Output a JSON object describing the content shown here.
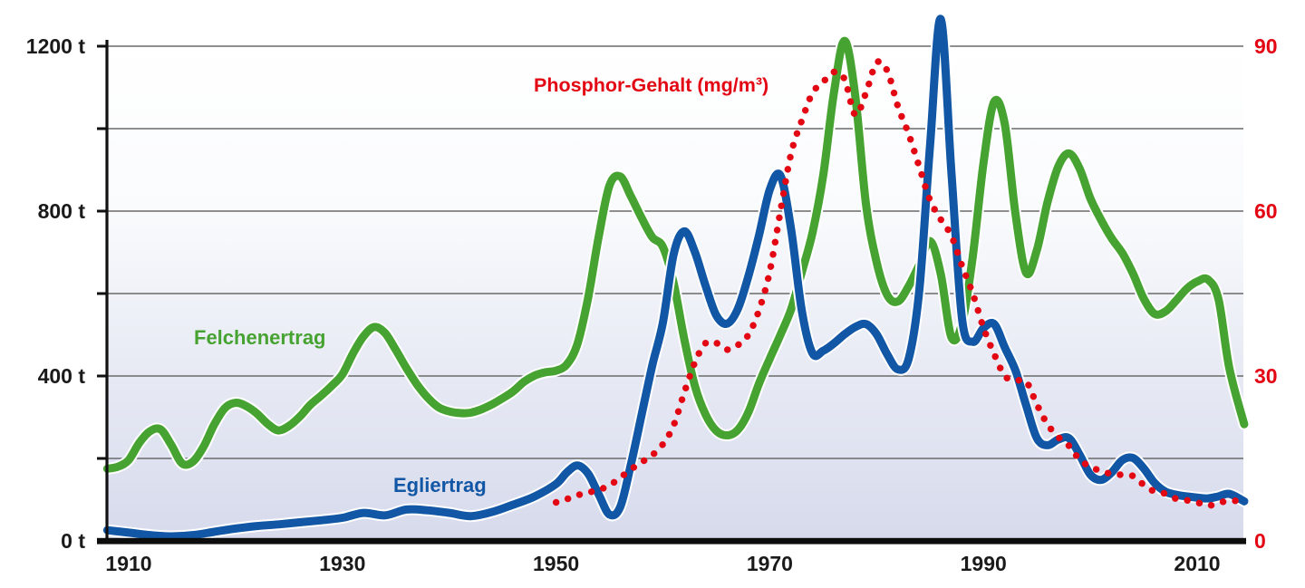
{
  "page": {
    "background": "#ffffff"
  },
  "chart_data": {
    "type": "line",
    "title": "",
    "grid": {
      "on": true,
      "color": "#6a6a6a",
      "step_tonnes": 200
    },
    "axes": {
      "x": {
        "tick_labels": [
          "1910",
          "1930",
          "1950",
          "1970",
          "1990",
          "2010"
        ],
        "tick_values": [
          1910,
          1930,
          1950,
          1970,
          1990,
          2010
        ],
        "range": [
          1908,
          2014.5
        ],
        "color": "#1a1a1a"
      },
      "left": {
        "tick_labels": [
          "0 t",
          "400 t",
          "800 t",
          "1200 t"
        ],
        "tick_values": [
          0,
          400,
          800,
          1200
        ],
        "range": [
          0,
          1200
        ],
        "color": "#1a1a1a"
      },
      "right": {
        "tick_labels": [
          "0",
          "30",
          "60",
          "90"
        ],
        "tick_values": [
          0,
          30,
          60,
          90
        ],
        "range": [
          0,
          90
        ],
        "color": "#e30613"
      }
    },
    "background_gradient": [
      "#ffffff",
      "#fafbfd",
      "#e7eaf4",
      "#d7daec"
    ],
    "series": [
      {
        "name": "Felchenertrag",
        "axis": "left",
        "unit": "t",
        "style": "solid",
        "color": "#46a331",
        "points": [
          [
            1908,
            175
          ],
          [
            1909,
            180
          ],
          [
            1910,
            196
          ],
          [
            1911,
            238
          ],
          [
            1912,
            266
          ],
          [
            1913,
            270
          ],
          [
            1914,
            232
          ],
          [
            1915,
            188
          ],
          [
            1916,
            192
          ],
          [
            1917,
            228
          ],
          [
            1918,
            282
          ],
          [
            1919,
            322
          ],
          [
            1920,
            335
          ],
          [
            1921,
            327
          ],
          [
            1922,
            309
          ],
          [
            1923,
            284
          ],
          [
            1924,
            268
          ],
          [
            1925,
            279
          ],
          [
            1926,
            301
          ],
          [
            1927,
            330
          ],
          [
            1928,
            352
          ],
          [
            1929,
            376
          ],
          [
            1930,
            404
          ],
          [
            1931,
            455
          ],
          [
            1932,
            497
          ],
          [
            1933,
            519
          ],
          [
            1934,
            504
          ],
          [
            1935,
            463
          ],
          [
            1936,
            419
          ],
          [
            1937,
            379
          ],
          [
            1938,
            347
          ],
          [
            1939,
            324
          ],
          [
            1940,
            314
          ],
          [
            1941,
            310
          ],
          [
            1942,
            311
          ],
          [
            1943,
            319
          ],
          [
            1944,
            331
          ],
          [
            1945,
            346
          ],
          [
            1946,
            363
          ],
          [
            1947,
            386
          ],
          [
            1948,
            401
          ],
          [
            1949,
            409
          ],
          [
            1950,
            413
          ],
          [
            1951,
            428
          ],
          [
            1952,
            478
          ],
          [
            1953,
            590
          ],
          [
            1954,
            740
          ],
          [
            1955,
            862
          ],
          [
            1956,
            884
          ],
          [
            1957,
            836
          ],
          [
            1958,
            784
          ],
          [
            1959,
            737
          ],
          [
            1960,
            713
          ],
          [
            1961,
            626
          ],
          [
            1962,
            489
          ],
          [
            1963,
            375
          ],
          [
            1964,
            306
          ],
          [
            1965,
            267
          ],
          [
            1966,
            256
          ],
          [
            1967,
            269
          ],
          [
            1968,
            312
          ],
          [
            1969,
            382
          ],
          [
            1970,
            442
          ],
          [
            1971,
            500
          ],
          [
            1972,
            562
          ],
          [
            1973,
            652
          ],
          [
            1974,
            748
          ],
          [
            1975,
            886
          ],
          [
            1976,
            1086
          ],
          [
            1977,
            1213
          ],
          [
            1978,
            1080
          ],
          [
            1979,
            818
          ],
          [
            1980,
            676
          ],
          [
            1981,
            596
          ],
          [
            1982,
            581
          ],
          [
            1983,
            618
          ],
          [
            1984,
            670
          ],
          [
            1985,
            727
          ],
          [
            1986,
            648
          ],
          [
            1987,
            494
          ],
          [
            1988,
            528
          ],
          [
            1989,
            690
          ],
          [
            1990,
            916
          ],
          [
            1991,
            1065
          ],
          [
            1992,
            1010
          ],
          [
            1993,
            792
          ],
          [
            1994,
            650
          ],
          [
            1995,
            706
          ],
          [
            1996,
            822
          ],
          [
            1997,
            908
          ],
          [
            1998,
            940
          ],
          [
            1999,
            903
          ],
          [
            2000,
            831
          ],
          [
            2001,
            779
          ],
          [
            2002,
            734
          ],
          [
            2003,
            698
          ],
          [
            2004,
            648
          ],
          [
            2005,
            588
          ],
          [
            2006,
            551
          ],
          [
            2007,
            556
          ],
          [
            2008,
            582
          ],
          [
            2009,
            611
          ],
          [
            2010,
            629
          ],
          [
            2011,
            634
          ],
          [
            2012,
            586
          ],
          [
            2013,
            420
          ],
          [
            2014.4,
            283
          ]
        ]
      },
      {
        "name": "Egliertrag",
        "axis": "left",
        "unit": "t",
        "style": "solid",
        "color": "#1257a5",
        "points": [
          [
            1908,
            26
          ],
          [
            1910,
            20
          ],
          [
            1912,
            14
          ],
          [
            1914,
            11
          ],
          [
            1916,
            14
          ],
          [
            1918,
            22
          ],
          [
            1920,
            30
          ],
          [
            1922,
            36
          ],
          [
            1924,
            40
          ],
          [
            1926,
            45
          ],
          [
            1928,
            50
          ],
          [
            1930,
            56
          ],
          [
            1932,
            68
          ],
          [
            1934,
            62
          ],
          [
            1936,
            76
          ],
          [
            1938,
            74
          ],
          [
            1940,
            68
          ],
          [
            1942,
            60
          ],
          [
            1944,
            70
          ],
          [
            1946,
            88
          ],
          [
            1948,
            108
          ],
          [
            1950,
            138
          ],
          [
            1951,
            166
          ],
          [
            1952,
            183
          ],
          [
            1953,
            163
          ],
          [
            1954,
            112
          ],
          [
            1955,
            64
          ],
          [
            1956,
            82
          ],
          [
            1957,
            185
          ],
          [
            1958,
            305
          ],
          [
            1959,
            425
          ],
          [
            1960,
            530
          ],
          [
            1961,
            695
          ],
          [
            1962,
            751
          ],
          [
            1963,
            700
          ],
          [
            1964,
            618
          ],
          [
            1965,
            547
          ],
          [
            1966,
            527
          ],
          [
            1967,
            562
          ],
          [
            1968,
            642
          ],
          [
            1969,
            742
          ],
          [
            1970,
            852
          ],
          [
            1971,
            886
          ],
          [
            1972,
            755
          ],
          [
            1973,
            558
          ],
          [
            1974,
            455
          ],
          [
            1975,
            461
          ],
          [
            1976,
            479
          ],
          [
            1977,
            501
          ],
          [
            1978,
            519
          ],
          [
            1979,
            526
          ],
          [
            1980,
            501
          ],
          [
            1981,
            452
          ],
          [
            1982,
            416
          ],
          [
            1983,
            442
          ],
          [
            1984,
            610
          ],
          [
            1985,
            960
          ],
          [
            1986,
            1266
          ],
          [
            1987,
            895
          ],
          [
            1988,
            538
          ],
          [
            1989,
            483
          ],
          [
            1990,
            516
          ],
          [
            1991,
            526
          ],
          [
            1992,
            469
          ],
          [
            1993,
            413
          ],
          [
            1994,
            328
          ],
          [
            1995,
            249
          ],
          [
            1996,
            232
          ],
          [
            1997,
            246
          ],
          [
            1998,
            249
          ],
          [
            1999,
            209
          ],
          [
            2000,
            161
          ],
          [
            2001,
            148
          ],
          [
            2002,
            166
          ],
          [
            2003,
            196
          ],
          [
            2004,
            201
          ],
          [
            2005,
            176
          ],
          [
            2006,
            141
          ],
          [
            2007,
            120
          ],
          [
            2008,
            112
          ],
          [
            2009,
            108
          ],
          [
            2010,
            105
          ],
          [
            2011,
            103
          ],
          [
            2012,
            108
          ],
          [
            2013,
            114
          ],
          [
            2014.4,
            96
          ]
        ]
      },
      {
        "name": "Phosphor-Gehalt (mg/m³)",
        "axis": "right",
        "unit": "mg/m³",
        "style": "dotted",
        "color": "#e30613",
        "points": [
          [
            1950,
            7
          ],
          [
            1951,
            7.6
          ],
          [
            1952,
            8.3
          ],
          [
            1953,
            8.8
          ],
          [
            1954,
            9.3
          ],
          [
            1955,
            10.1
          ],
          [
            1956,
            11.5
          ],
          [
            1957,
            13
          ],
          [
            1958,
            14.3
          ],
          [
            1959,
            15.6
          ],
          [
            1960,
            17.6
          ],
          [
            1961,
            21
          ],
          [
            1962,
            27
          ],
          [
            1963,
            32.5
          ],
          [
            1964,
            36
          ],
          [
            1965,
            36
          ],
          [
            1966,
            34.8
          ],
          [
            1967,
            35.6
          ],
          [
            1968,
            37.5
          ],
          [
            1969,
            42
          ],
          [
            1970,
            49
          ],
          [
            1971,
            60
          ],
          [
            1972,
            70.5
          ],
          [
            1973,
            76.5
          ],
          [
            1974,
            81.5
          ],
          [
            1975,
            83.5
          ],
          [
            1976,
            85.3
          ],
          [
            1977,
            84
          ],
          [
            1978,
            77.5
          ],
          [
            1979,
            81.5
          ],
          [
            1980,
            87
          ],
          [
            1981,
            85.5
          ],
          [
            1982,
            79
          ],
          [
            1983,
            74
          ],
          [
            1984,
            68
          ],
          [
            1985,
            62
          ],
          [
            1986,
            58.5
          ],
          [
            1987,
            55.5
          ],
          [
            1988,
            50
          ],
          [
            1989,
            45
          ],
          [
            1990,
            38.8
          ],
          [
            1991,
            34
          ],
          [
            1992,
            30
          ],
          [
            1993,
            29.2
          ],
          [
            1994,
            29
          ],
          [
            1995,
            24.8
          ],
          [
            1996,
            21.2
          ],
          [
            1997,
            18.9
          ],
          [
            1998,
            17.3
          ],
          [
            1999,
            14.8
          ],
          [
            2000,
            13.5
          ],
          [
            2001,
            12.7
          ],
          [
            2002,
            12.2
          ],
          [
            2003,
            12
          ],
          [
            2004,
            11.8
          ],
          [
            2005,
            10.2
          ],
          [
            2006,
            9
          ],
          [
            2007,
            8.6
          ],
          [
            2008,
            7.7
          ],
          [
            2009,
            7.4
          ],
          [
            2010,
            7
          ],
          [
            2011,
            6.4
          ],
          [
            2012,
            6.9
          ],
          [
            2013,
            7.3
          ],
          [
            2014.4,
            7.2
          ]
        ]
      }
    ]
  }
}
